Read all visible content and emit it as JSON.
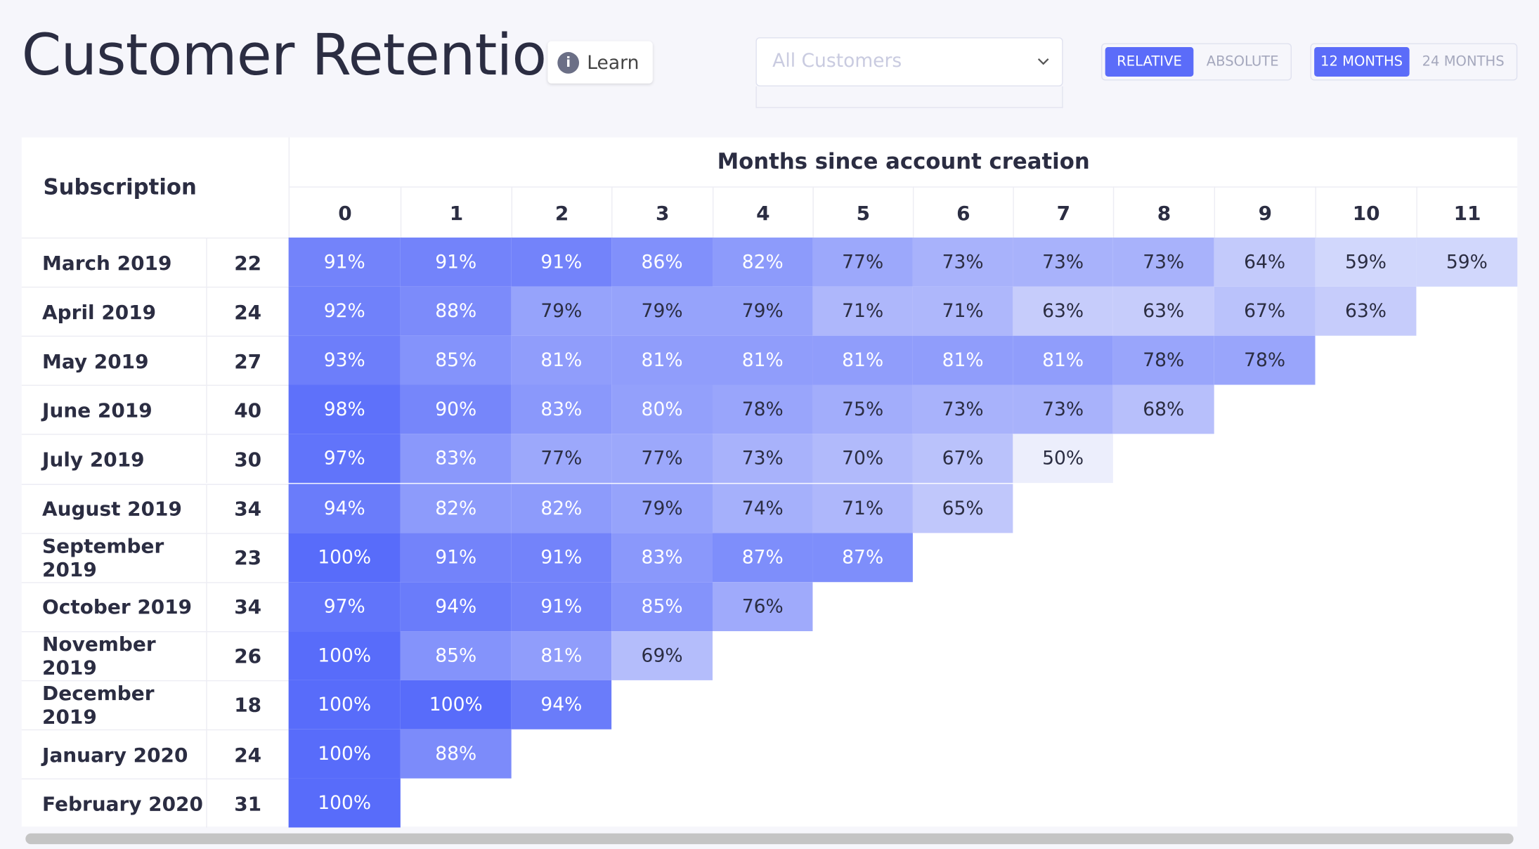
{
  "header": {
    "title": "Customer Retention",
    "learn": "Learn",
    "filter": "All Customers",
    "mode_buttons": [
      "RELATIVE",
      "ABSOLUTE"
    ],
    "range_buttons": [
      "12 MONTHS",
      "24 MONTHS"
    ]
  },
  "table": {
    "row_header": "Subscription",
    "column_group": "Months since account creation",
    "columns": [
      0,
      1,
      2,
      3,
      4,
      5,
      6,
      7,
      8,
      9,
      10,
      11
    ],
    "rows": [
      {
        "label": "March 2019",
        "count": 22,
        "cells": [
          "91%",
          "91%",
          "91%",
          "86%",
          "82%",
          "77%",
          "73%",
          "73%",
          "73%",
          "64%",
          "59%",
          "59%"
        ]
      },
      {
        "label": "April 2019",
        "count": 24,
        "cells": [
          "92%",
          "88%",
          "79%",
          "79%",
          "79%",
          "71%",
          "71%",
          "63%",
          "63%",
          "67%",
          "63%"
        ]
      },
      {
        "label": "May 2019",
        "count": 27,
        "cells": [
          "93%",
          "85%",
          "81%",
          "81%",
          "81%",
          "81%",
          "81%",
          "81%",
          "78%",
          "78%"
        ]
      },
      {
        "label": "June 2019",
        "count": 40,
        "cells": [
          "98%",
          "90%",
          "83%",
          "80%",
          "78%",
          "75%",
          "73%",
          "73%",
          "68%"
        ]
      },
      {
        "label": "July 2019",
        "count": 30,
        "cells": [
          "97%",
          "83%",
          "77%",
          "77%",
          "73%",
          "70%",
          "67%",
          "50%"
        ]
      },
      {
        "label": "August 2019",
        "count": 34,
        "cells": [
          "94%",
          "82%",
          "82%",
          "79%",
          "74%",
          "71%",
          "65%"
        ]
      },
      {
        "label": "September 2019",
        "count": 23,
        "cells": [
          "100%",
          "91%",
          "91%",
          "83%",
          "87%",
          "87%"
        ]
      },
      {
        "label": "October 2019",
        "count": 34,
        "cells": [
          "97%",
          "94%",
          "91%",
          "85%",
          "76%"
        ]
      },
      {
        "label": "November 2019",
        "count": 26,
        "cells": [
          "100%",
          "85%",
          "81%",
          "69%"
        ]
      },
      {
        "label": "December 2019",
        "count": 18,
        "cells": [
          "100%",
          "100%",
          "94%"
        ]
      },
      {
        "label": "January 2020",
        "count": 24,
        "cells": [
          "100%",
          "88%"
        ]
      },
      {
        "label": "February 2020",
        "count": 31,
        "cells": [
          "100%"
        ]
      }
    ]
  }
}
